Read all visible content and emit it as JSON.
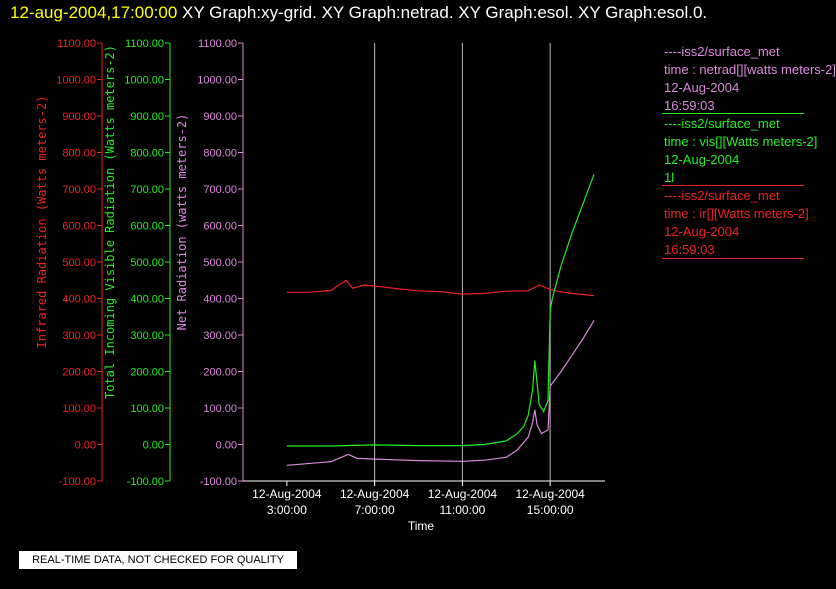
{
  "title": {
    "datetime": "12-aug-2004,17:00:00",
    "graphs": "XY Graph:xy-grid.  XY Graph:netrad.  XY Graph:esol.  XY Graph:esol.0."
  },
  "legend": [
    {
      "source": "----iss2/surface_met",
      "variable": "time : netrad[][watts meters-2]",
      "date": "12-Aug-2004",
      "time": "16:59:03",
      "color": "#dd88dd"
    },
    {
      "source": "----iss2/surface_met",
      "variable": "time : vis[][Watts meters-2]",
      "date": "12-Aug-2004",
      "time": "1l",
      "color": "#22ee22"
    },
    {
      "source": "----iss2/surface_met",
      "variable": "time : ir[][Watts meters-2]",
      "date": "12-Aug-2004",
      "time": "16:59:03",
      "color": "#ee2222"
    }
  ],
  "quality_note": "REAL-TIME DATA, NOT CHECKED FOR QUALITY",
  "chart_data": {
    "type": "line",
    "xlabel": "Time",
    "x_ticks": [
      {
        "date": "12-Aug-2004",
        "time": "3:00:00",
        "hour": 3
      },
      {
        "date": "12-Aug-2004",
        "time": "7:00:00",
        "hour": 7
      },
      {
        "date": "12-Aug-2004",
        "time": "11:00:00",
        "hour": 11
      },
      {
        "date": "12-Aug-2004",
        "time": "15:00:00",
        "hour": 15
      }
    ],
    "xlim_hours": [
      1.0,
      17.5
    ],
    "vertical_gridlines_hours": [
      7,
      11,
      15
    ],
    "y_axes": [
      {
        "id": "ir",
        "label": "Infrared Radiation (Watts meters-2)",
        "color": "#ee2222",
        "ylim": [
          -100,
          1100
        ]
      },
      {
        "id": "vis",
        "label": "Total Incoming Visible Radiation (Watts meters-2)",
        "color": "#22ee22",
        "ylim": [
          -100,
          1100
        ]
      },
      {
        "id": "netrad",
        "label": "Net Radiation (watts meters-2)",
        "color": "#dd88dd",
        "ylim": [
          -100,
          1100
        ]
      }
    ],
    "y_ticks": [
      "1100.00",
      "1000.00",
      "900.00",
      "800.00",
      "700.00",
      "600.00",
      "500.00",
      "400.00",
      "300.00",
      "200.00",
      "100.00",
      "0.00",
      "-100.00"
    ],
    "series": [
      {
        "name": "time : ir[][Watts meters-2]",
        "axis": "ir",
        "color": "#ee2222",
        "x": [
          3.0,
          4.0,
          5.0,
          5.7,
          6.0,
          6.5,
          7.0,
          8.0,
          9.0,
          10.0,
          11.0,
          12.0,
          13.0,
          14.0,
          14.5,
          15.0,
          15.5,
          16.0,
          17.0
        ],
        "y": [
          417,
          417,
          422,
          450,
          428,
          437,
          434,
          427,
          421,
          419,
          412,
          414,
          420,
          421,
          437,
          425,
          418,
          414,
          408
        ]
      },
      {
        "name": "time : vis[][Watts meters-2]",
        "axis": "vis",
        "color": "#22ee22",
        "x": [
          3.0,
          5.0,
          7.0,
          9.0,
          11.0,
          12.0,
          13.0,
          13.5,
          13.8,
          14.0,
          14.2,
          14.3,
          14.4,
          14.5,
          14.7,
          14.9,
          15.0,
          15.1,
          15.5,
          16.0,
          16.5,
          17.0
        ],
        "y": [
          -4,
          -4,
          -1,
          -3,
          -3,
          0,
          10,
          30,
          50,
          80,
          150,
          230,
          170,
          110,
          90,
          120,
          370,
          400,
          490,
          580,
          660,
          740
        ]
      },
      {
        "name": "time : netrad[][watts meters-2]",
        "axis": "netrad",
        "color": "#dd88dd",
        "x": [
          3.0,
          5.0,
          5.8,
          6.2,
          7.0,
          9.0,
          11.0,
          12.0,
          13.0,
          13.5,
          14.0,
          14.2,
          14.3,
          14.4,
          14.6,
          14.9,
          15.0,
          15.5,
          16.0,
          16.5,
          17.0
        ],
        "y": [
          -57,
          -47,
          -27,
          -38,
          -40,
          -44,
          -46,
          -43,
          -35,
          -15,
          20,
          60,
          95,
          55,
          30,
          40,
          160,
          200,
          245,
          290,
          340
        ]
      }
    ]
  }
}
